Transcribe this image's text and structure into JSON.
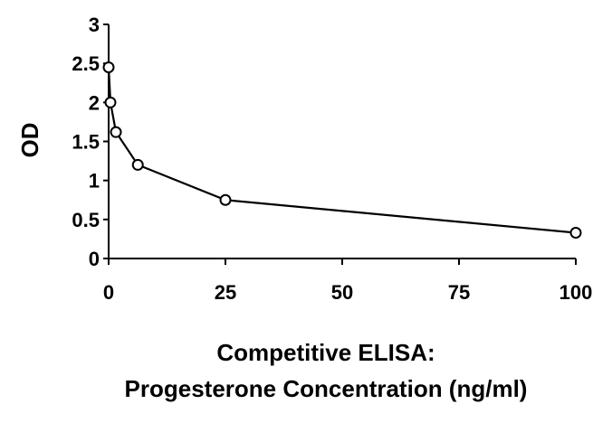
{
  "chart_data": {
    "type": "scatter",
    "title": "",
    "xlabel": [
      "Competitive ELISA:",
      "Progesterone Concentration (ng/ml)"
    ],
    "ylabel": "OD",
    "xlim": [
      0,
      100
    ],
    "ylim": [
      0,
      3
    ],
    "xticks": [
      0,
      25,
      50,
      75,
      100
    ],
    "xtick_labels": [
      "0",
      "25",
      "50",
      "75",
      "100"
    ],
    "yticks": [
      0,
      0.5,
      1,
      1.5,
      2,
      2.5,
      3
    ],
    "ytick_labels": [
      "0",
      "0.5",
      "1",
      "1.5",
      "2",
      "2.5",
      "3"
    ],
    "grid": false,
    "legend": "none",
    "marker": "open-circle",
    "line_color": "#000000",
    "series": [
      {
        "x": [
          0,
          0.39,
          1.56,
          6.25,
          25,
          100
        ],
        "y": [
          2.45,
          2.0,
          1.62,
          1.2,
          0.75,
          0.33
        ]
      }
    ]
  }
}
